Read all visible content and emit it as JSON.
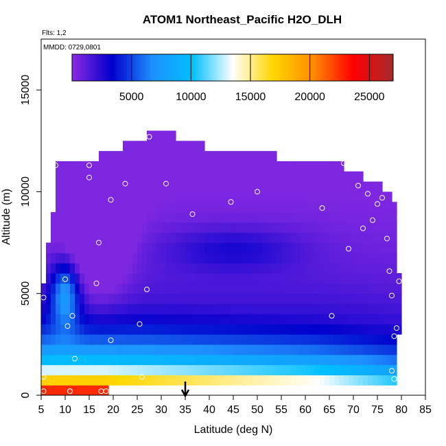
{
  "chart_data": {
    "type": "heatmap",
    "title": "ATOM1 Northeast_Pacific H2O_DLH",
    "annotations": [
      "Flts: 1,2",
      "MMDD: 0729,0801"
    ],
    "xlabel": "Latitude (deg N)",
    "ylabel": "Altitude (m)",
    "xlim": [
      5,
      85
    ],
    "ylim": [
      0,
      17500
    ],
    "x_ticks": [
      5,
      10,
      15,
      20,
      25,
      30,
      35,
      40,
      45,
      50,
      55,
      60,
      65,
      70,
      75,
      80,
      85
    ],
    "y_ticks": [
      0,
      5000,
      10000,
      15000
    ],
    "grid": false,
    "colorbar": {
      "placement": "top-inside",
      "range": [
        0,
        27000
      ],
      "ticks": [
        5000,
        10000,
        15000,
        20000,
        25000
      ],
      "colors": [
        "#8a2be2",
        "#0000cd",
        "#1e90ff",
        "#00bfff",
        "#ffffff",
        "#ffd700",
        "#ff8c00",
        "#ff0000",
        "#a52a2a"
      ]
    },
    "marker_latitude": 35,
    "profile": [
      {
        "y": 250,
        "x0": 5,
        "x1": 19
      },
      {
        "y": 750,
        "x0": 5,
        "x1": 79
      },
      {
        "y": 1250,
        "x0": 5,
        "x1": 79
      },
      {
        "y": 1750,
        "x0": 5,
        "x1": 79
      },
      {
        "y": 2250,
        "x0": 5,
        "x1": 79
      },
      {
        "y": 2750,
        "x0": 5,
        "x1": 79
      },
      {
        "y": 3250,
        "x0": 5,
        "x1": 80
      },
      {
        "y": 3750,
        "x0": 5,
        "x1": 80
      },
      {
        "y": 4250,
        "x0": 5,
        "x1": 80
      },
      {
        "y": 4750,
        "x0": 5,
        "x1": 80
      },
      {
        "y": 5250,
        "x0": 5,
        "x1": 80
      },
      {
        "y": 5750,
        "x0": 6,
        "x1": 80
      },
      {
        "y": 6250,
        "x0": 6,
        "x1": 79
      },
      {
        "y": 6750,
        "x0": 6,
        "x1": 79
      },
      {
        "y": 7250,
        "x0": 6,
        "x1": 79
      },
      {
        "y": 7750,
        "x0": 7,
        "x1": 79
      },
      {
        "y": 8250,
        "x0": 7,
        "x1": 79
      },
      {
        "y": 8750,
        "x0": 7,
        "x1": 79
      },
      {
        "y": 9250,
        "x0": 8,
        "x1": 79
      },
      {
        "y": 9750,
        "x0": 8,
        "x1": 78
      },
      {
        "y": 10250,
        "x0": 8,
        "x1": 76
      },
      {
        "y": 10750,
        "x0": 8,
        "x1": 72
      },
      {
        "y": 11250,
        "x0": 8,
        "x1": 68
      },
      {
        "y": 11750,
        "x0": 17,
        "x1": 54
      },
      {
        "y": 12250,
        "x0": 22,
        "x1": 39
      },
      {
        "y": 12750,
        "x0": 27,
        "x1": 33
      }
    ],
    "points": [
      {
        "x": 5.5,
        "y": 200
      },
      {
        "x": 5.5,
        "y": 900
      },
      {
        "x": 5.5,
        "y": 4800
      },
      {
        "x": 8,
        "y": 11300
      },
      {
        "x": 10,
        "y": 5700
      },
      {
        "x": 10.5,
        "y": 3400
      },
      {
        "x": 11,
        "y": 200
      },
      {
        "x": 11,
        "y": 200
      },
      {
        "x": 11.5,
        "y": 3900
      },
      {
        "x": 12,
        "y": 1800
      },
      {
        "x": 15,
        "y": 11300
      },
      {
        "x": 15,
        "y": 10700
      },
      {
        "x": 16.5,
        "y": 5500
      },
      {
        "x": 17,
        "y": 7500
      },
      {
        "x": 17.5,
        "y": 200
      },
      {
        "x": 18.5,
        "y": 200
      },
      {
        "x": 19.5,
        "y": 2700
      },
      {
        "x": 19.5,
        "y": 9600
      },
      {
        "x": 22.5,
        "y": 10400
      },
      {
        "x": 25.5,
        "y": 3500
      },
      {
        "x": 26,
        "y": 900
      },
      {
        "x": 27,
        "y": 5200
      },
      {
        "x": 27.5,
        "y": 12700
      },
      {
        "x": 31,
        "y": 10400
      },
      {
        "x": 36.5,
        "y": 8900
      },
      {
        "x": 44.5,
        "y": 9500
      },
      {
        "x": 50,
        "y": 10000
      },
      {
        "x": 63.5,
        "y": 9200
      },
      {
        "x": 65.5,
        "y": 3900
      },
      {
        "x": 68,
        "y": 11400
      },
      {
        "x": 69,
        "y": 7200
      },
      {
        "x": 71,
        "y": 10300
      },
      {
        "x": 72,
        "y": 8200
      },
      {
        "x": 73,
        "y": 9900
      },
      {
        "x": 74,
        "y": 8600
      },
      {
        "x": 75,
        "y": 9400
      },
      {
        "x": 76,
        "y": 9700
      },
      {
        "x": 77,
        "y": 7700
      },
      {
        "x": 77.5,
        "y": 6100
      },
      {
        "x": 78,
        "y": 4900
      },
      {
        "x": 78,
        "y": 1200
      },
      {
        "x": 78.5,
        "y": 800
      },
      {
        "x": 78.5,
        "y": 2900
      },
      {
        "x": 79,
        "y": 3300
      },
      {
        "x": 79.5,
        "y": 5600
      }
    ]
  }
}
